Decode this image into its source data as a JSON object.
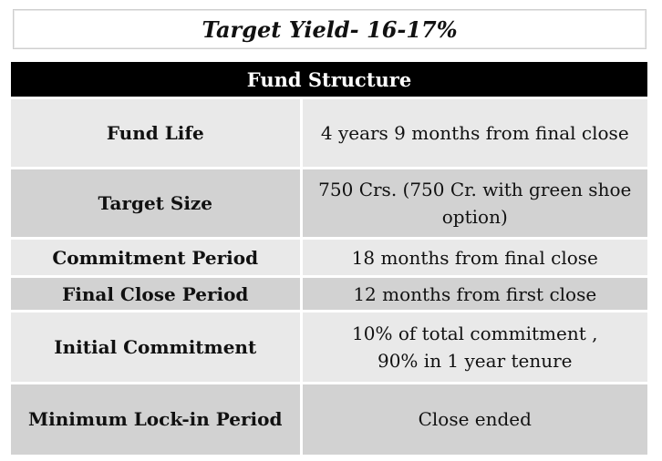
{
  "header": {
    "target_yield": "Target Yield- 16-17%"
  },
  "table": {
    "title": "Fund Structure",
    "rows": [
      {
        "label": "Fund Life",
        "value": "4 years 9 months from final close"
      },
      {
        "label": "Target Size",
        "value": "750 Crs. (750 Cr. with green shoe option)"
      },
      {
        "label": "Commitment Period",
        "value": "18 months from final close"
      },
      {
        "label": "Final Close Period",
        "value": "12 months from first close"
      },
      {
        "label": "Initial Commitment",
        "value_line1": "10% of total commitment ,",
        "value_line2": "90% in 1 year tenure"
      },
      {
        "label": "Minimum Lock-in Period",
        "value": "Close ended"
      }
    ]
  },
  "colors": {
    "header_bg": "#000000",
    "row_light": "#e9e9e9",
    "row_dark": "#d2d2d2"
  }
}
